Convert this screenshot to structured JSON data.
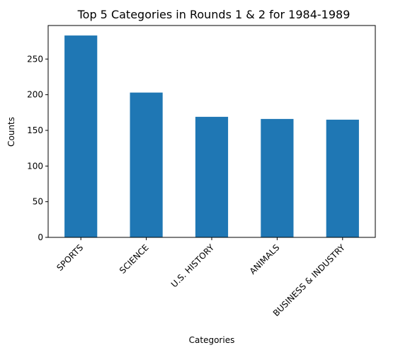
{
  "chart_data": {
    "type": "bar",
    "title": "Top 5 Categories in Rounds 1 & 2 for 1984-1989",
    "xlabel": "Categories",
    "ylabel": "Counts",
    "categories": [
      "SPORTS",
      "SCIENCE",
      "U.S. HISTORY",
      "ANIMALS",
      "BUSINESS & INDUSTRY"
    ],
    "values": [
      283,
      203,
      169,
      166,
      165
    ],
    "ylim": [
      0,
      297
    ],
    "yticks": [
      "0",
      "50",
      "100",
      "150",
      "200",
      "250"
    ],
    "bar_color": "#1f77b4",
    "grid": false,
    "legend": "none"
  }
}
